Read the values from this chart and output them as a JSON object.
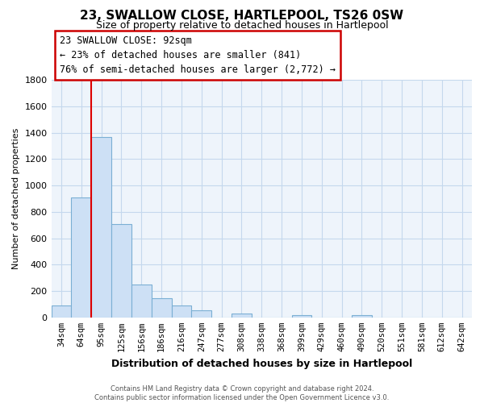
{
  "title": "23, SWALLOW CLOSE, HARTLEPOOL, TS26 0SW",
  "subtitle": "Size of property relative to detached houses in Hartlepool",
  "xlabel": "Distribution of detached houses by size in Hartlepool",
  "ylabel": "Number of detached properties",
  "bar_labels": [
    "34sqm",
    "64sqm",
    "95sqm",
    "125sqm",
    "156sqm",
    "186sqm",
    "216sqm",
    "247sqm",
    "277sqm",
    "308sqm",
    "338sqm",
    "368sqm",
    "399sqm",
    "429sqm",
    "460sqm",
    "490sqm",
    "520sqm",
    "551sqm",
    "581sqm",
    "612sqm",
    "642sqm"
  ],
  "bar_values": [
    90,
    910,
    1370,
    710,
    250,
    145,
    90,
    55,
    0,
    30,
    0,
    0,
    15,
    0,
    0,
    15,
    0,
    0,
    0,
    0,
    0
  ],
  "bar_color": "#cde0f5",
  "bar_edge_color": "#7bafd4",
  "red_line_x": 1.5,
  "red_line_color": "#dd0000",
  "annotation_line1": "23 SWALLOW CLOSE: 92sqm",
  "annotation_line2": "← 23% of detached houses are smaller (841)",
  "annotation_line3": "76% of semi-detached houses are larger (2,772) →",
  "ann_box_color": "#cc0000",
  "ylim": [
    0,
    1800
  ],
  "yticks": [
    0,
    200,
    400,
    600,
    800,
    1000,
    1200,
    1400,
    1600,
    1800
  ],
  "footer_line1": "Contains HM Land Registry data © Crown copyright and database right 2024.",
  "footer_line2": "Contains public sector information licensed under the Open Government Licence v3.0.",
  "bg_color": "#ffffff",
  "plot_bg_color": "#eef4fb",
  "grid_color": "#c5d8ed",
  "title_fontsize": 11,
  "subtitle_fontsize": 9,
  "ylabel_fontsize": 8,
  "xlabel_fontsize": 9,
  "tick_fontsize": 7.5,
  "ann_fontsize": 8.5
}
